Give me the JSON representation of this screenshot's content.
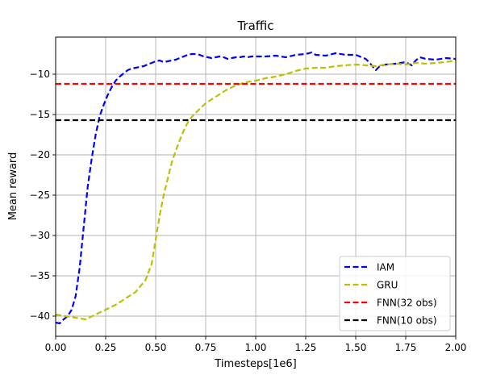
{
  "chart_data": {
    "type": "line",
    "title": "Traffic",
    "xlabel": "Timesteps[1e6]",
    "ylabel": "Mean reward",
    "xlim": [
      0,
      2.0
    ],
    "ylim": [
      -42.5,
      -5.4
    ],
    "xticks": [
      0.0,
      0.25,
      0.5,
      0.75,
      1.0,
      1.25,
      1.5,
      1.75,
      2.0
    ],
    "xtick_labels": [
      "0.00",
      "0.25",
      "0.50",
      "0.75",
      "1.00",
      "1.25",
      "1.50",
      "1.75",
      "2.00"
    ],
    "yticks": [
      -40,
      -35,
      -30,
      -25,
      -20,
      -15,
      -10
    ],
    "ytick_labels": [
      "−40",
      "−35",
      "−30",
      "−25",
      "−20",
      "−15",
      "−10"
    ],
    "grid": true,
    "legend_position": "lower-right",
    "series": [
      {
        "name": "IAM",
        "color": "#0000ff",
        "style": "dashed",
        "x": [
          0.0,
          0.02,
          0.04,
          0.06,
          0.08,
          0.1,
          0.12,
          0.14,
          0.16,
          0.18,
          0.2,
          0.22,
          0.24,
          0.26,
          0.28,
          0.3,
          0.32,
          0.34,
          0.36,
          0.38,
          0.4,
          0.42,
          0.44,
          0.46,
          0.48,
          0.5,
          0.52,
          0.54,
          0.56,
          0.58,
          0.6,
          0.62,
          0.64,
          0.66,
          0.68,
          0.7,
          0.72,
          0.74,
          0.76,
          0.78,
          0.8,
          0.82,
          0.84,
          0.86,
          0.88,
          0.9,
          0.92,
          0.94,
          0.96,
          0.98,
          1.0,
          1.05,
          1.1,
          1.15,
          1.2,
          1.25,
          1.28,
          1.3,
          1.35,
          1.4,
          1.45,
          1.5,
          1.52,
          1.55,
          1.57,
          1.6,
          1.62,
          1.65,
          1.7,
          1.75,
          1.78,
          1.8,
          1.82,
          1.85,
          1.9,
          1.95,
          2.0
        ],
        "y": [
          -40.8,
          -40.9,
          -40.4,
          -40.0,
          -39.2,
          -37.5,
          -34.0,
          -29.0,
          -24.0,
          -20.5,
          -17.5,
          -15.2,
          -13.8,
          -12.6,
          -11.6,
          -10.8,
          -10.3,
          -9.9,
          -9.5,
          -9.3,
          -9.2,
          -9.1,
          -9.0,
          -8.8,
          -8.6,
          -8.4,
          -8.3,
          -8.5,
          -8.4,
          -8.3,
          -8.2,
          -8.0,
          -7.8,
          -7.6,
          -7.5,
          -7.5,
          -7.6,
          -7.8,
          -7.9,
          -8.0,
          -7.9,
          -7.8,
          -7.9,
          -8.1,
          -8.0,
          -7.9,
          -7.9,
          -7.8,
          -7.9,
          -7.8,
          -7.8,
          -7.8,
          -7.7,
          -7.9,
          -7.6,
          -7.5,
          -7.3,
          -7.6,
          -7.7,
          -7.4,
          -7.6,
          -7.6,
          -7.8,
          -8.1,
          -8.6,
          -9.5,
          -9.0,
          -8.8,
          -8.7,
          -8.5,
          -8.9,
          -8.3,
          -7.9,
          -8.1,
          -8.2,
          -8.0,
          -8.1
        ]
      },
      {
        "name": "GRU",
        "color": "#bfbf00",
        "style": "dashed",
        "x": [
          0.0,
          0.05,
          0.1,
          0.15,
          0.2,
          0.25,
          0.3,
          0.35,
          0.4,
          0.45,
          0.48,
          0.5,
          0.52,
          0.54,
          0.56,
          0.58,
          0.6,
          0.62,
          0.64,
          0.66,
          0.68,
          0.7,
          0.72,
          0.75,
          0.8,
          0.85,
          0.9,
          0.95,
          1.0,
          1.05,
          1.1,
          1.15,
          1.2,
          1.25,
          1.3,
          1.35,
          1.4,
          1.45,
          1.5,
          1.55,
          1.6,
          1.65,
          1.7,
          1.75,
          1.8,
          1.85,
          1.9,
          1.95,
          2.0
        ],
        "y": [
          -39.8,
          -40.0,
          -40.2,
          -40.4,
          -39.8,
          -39.2,
          -38.6,
          -37.8,
          -37.0,
          -35.5,
          -33.5,
          -30.5,
          -27.5,
          -25.0,
          -23.0,
          -21.0,
          -19.5,
          -18.2,
          -17.0,
          -16.0,
          -15.3,
          -14.8,
          -14.3,
          -13.6,
          -12.8,
          -12.0,
          -11.4,
          -11.0,
          -10.8,
          -10.5,
          -10.3,
          -10.0,
          -9.6,
          -9.3,
          -9.2,
          -9.2,
          -9.0,
          -8.9,
          -8.8,
          -8.9,
          -9.0,
          -8.8,
          -8.7,
          -8.8,
          -8.6,
          -8.7,
          -8.6,
          -8.5,
          -8.3
        ]
      },
      {
        "name": "FNN(32 obs)",
        "color": "#ff0000",
        "style": "dashed",
        "x": [
          0.0,
          2.0
        ],
        "y": [
          -11.2,
          -11.2
        ]
      },
      {
        "name": "FNN(10 obs)",
        "color": "#000000",
        "style": "dashed",
        "x": [
          0.0,
          2.0
        ],
        "y": [
          -15.7,
          -15.7
        ]
      }
    ]
  }
}
